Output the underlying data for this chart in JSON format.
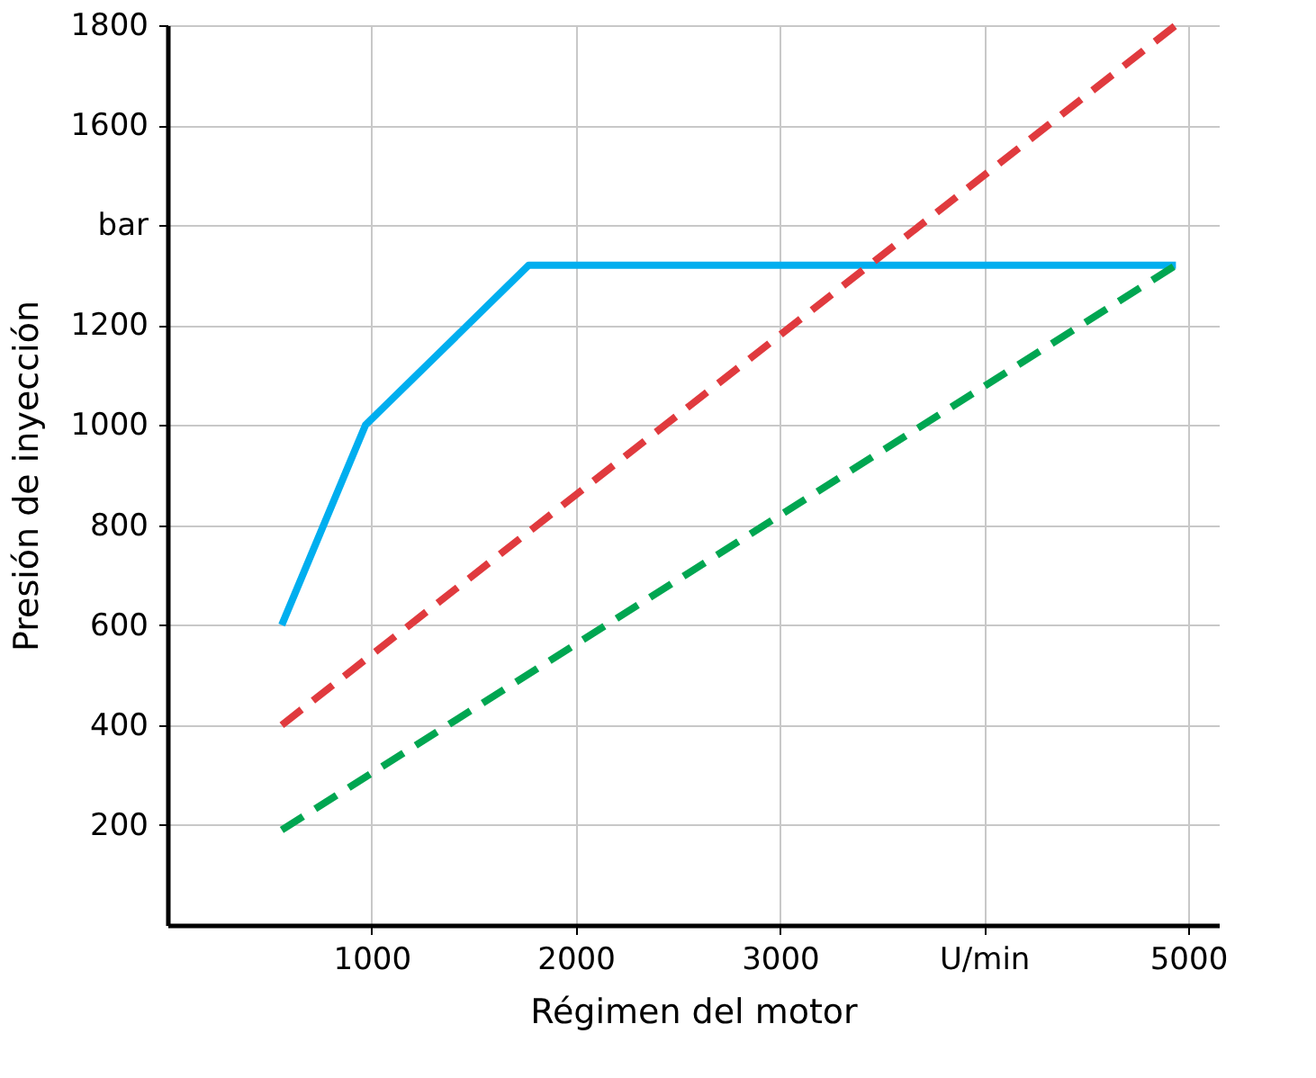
{
  "chart_data": {
    "type": "line",
    "xlabel": "Régimen del motor",
    "ylabel": "Presión de inyección",
    "xlim": [
      0,
      5150
    ],
    "ylim": [
      0,
      1800
    ],
    "xticks": [
      1000,
      2000,
      3000,
      {
        "value": 4000,
        "label": "U/min"
      },
      5000
    ],
    "yticks": [
      200,
      400,
      600,
      800,
      1000,
      1200,
      {
        "value": 1400,
        "label": "bar"
      },
      1600,
      1800
    ],
    "grid": true,
    "marker": "none",
    "series": [
      {
        "color": "#00aeef",
        "line_style": "solid",
        "x": [
          560,
          970,
          1770,
          4940
        ],
        "values": [
          600,
          1000,
          1320,
          1320
        ]
      },
      {
        "color": "#e03a3e",
        "line_style": "dashed",
        "x": [
          560,
          4940
        ],
        "values": [
          400,
          1800
        ]
      },
      {
        "color": "#00a651",
        "line_style": "dashed",
        "x": [
          560,
          4940
        ],
        "values": [
          190,
          1320
        ]
      }
    ]
  }
}
